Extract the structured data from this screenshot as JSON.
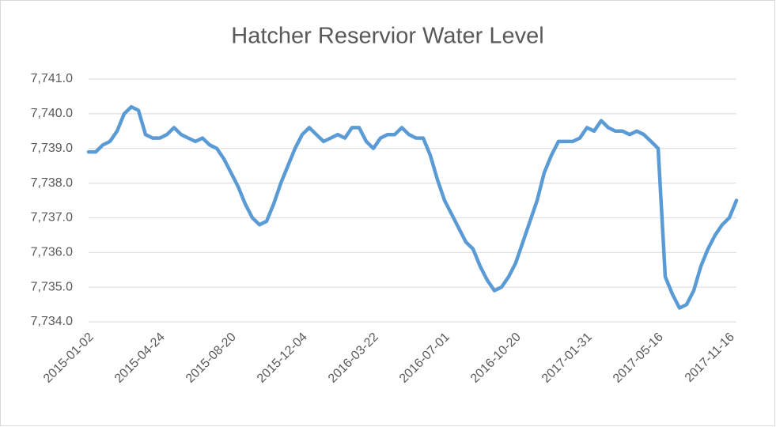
{
  "chart_data": {
    "type": "line",
    "title": "Hatcher Reservior Water Level",
    "categories": [
      "2015-01-02",
      null,
      null,
      null,
      null,
      null,
      null,
      null,
      null,
      null,
      "2015-04-24",
      null,
      null,
      null,
      null,
      null,
      null,
      null,
      null,
      null,
      "2015-08-20",
      null,
      null,
      null,
      null,
      null,
      null,
      null,
      null,
      null,
      "2015-12-04",
      null,
      null,
      null,
      null,
      null,
      null,
      null,
      null,
      null,
      "2016-03-22",
      null,
      null,
      null,
      null,
      null,
      null,
      null,
      null,
      null,
      "2016-07-01",
      null,
      null,
      null,
      null,
      null,
      null,
      null,
      null,
      null,
      "2016-10-20",
      null,
      null,
      null,
      null,
      null,
      null,
      null,
      null,
      null,
      "2017-01-31",
      null,
      null,
      null,
      null,
      null,
      null,
      null,
      null,
      null,
      "2017-05-16",
      null,
      null,
      null,
      null,
      null,
      null,
      null,
      null,
      null,
      "2017-11-16",
      null
    ],
    "series": [
      {
        "name": "Water Level",
        "color": "#5b9bd5",
        "values": [
          7738.9,
          7738.9,
          7739.1,
          7739.2,
          7739.5,
          7740.0,
          7740.2,
          7740.1,
          7739.4,
          7739.3,
          7739.3,
          7739.4,
          7739.6,
          7739.4,
          7739.3,
          7739.2,
          7739.3,
          7739.1,
          7739.0,
          7738.7,
          7738.3,
          7737.9,
          7737.4,
          7737.0,
          7736.8,
          7736.9,
          7737.4,
          7738.0,
          7738.5,
          7739.0,
          7739.4,
          7739.6,
          7739.4,
          7739.2,
          7739.3,
          7739.4,
          7739.3,
          7739.6,
          7739.6,
          7739.2,
          7739.0,
          7739.3,
          7739.4,
          7739.4,
          7739.6,
          7739.4,
          7739.3,
          7739.3,
          7738.8,
          7738.1,
          7737.5,
          7737.1,
          7736.7,
          7736.3,
          7736.1,
          7735.6,
          7735.2,
          7734.9,
          7735.0,
          7735.3,
          7735.7,
          7736.3,
          7736.9,
          7737.5,
          7738.3,
          7738.8,
          7739.2,
          7739.2,
          7739.2,
          7739.3,
          7739.6,
          7739.5,
          7739.8,
          7739.6,
          7739.5,
          7739.5,
          7739.4,
          7739.5,
          7739.4,
          7739.2,
          7739.0,
          7735.3,
          7734.8,
          7734.4,
          7734.5,
          7734.9,
          7735.6,
          7736.1,
          7736.5,
          7736.8,
          7737.0,
          7737.5
        ]
      }
    ],
    "ylim": [
      7734,
      7741
    ],
    "yticks": [
      {
        "value": 7734,
        "label": "7,734.0"
      },
      {
        "value": 7735,
        "label": "7,735.0"
      },
      {
        "value": 7736,
        "label": "7,736.0"
      },
      {
        "value": 7737,
        "label": "7,737.0"
      },
      {
        "value": 7738,
        "label": "7,738.0"
      },
      {
        "value": 7739,
        "label": "7,739.0"
      },
      {
        "value": 7740,
        "label": "7,740.0"
      },
      {
        "value": 7741,
        "label": "7,741.0"
      }
    ],
    "grid": true
  }
}
